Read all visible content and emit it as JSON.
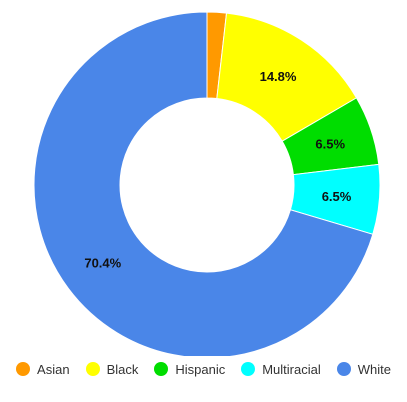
{
  "chart_data": {
    "type": "pie",
    "donut": true,
    "title": "",
    "legend_position": "bottom",
    "categories": [
      "Asian",
      "Black",
      "Hispanic",
      "Multiracial",
      "White"
    ],
    "values": [
      1.8,
      14.8,
      6.5,
      6.5,
      70.4
    ],
    "data_labels": [
      "",
      "14.8%",
      "6.5%",
      "6.5%",
      "70.4%"
    ],
    "colors": [
      "#ff9900",
      "#ffff00",
      "#00dd00",
      "#00ffff",
      "#4a86e8"
    ]
  }
}
